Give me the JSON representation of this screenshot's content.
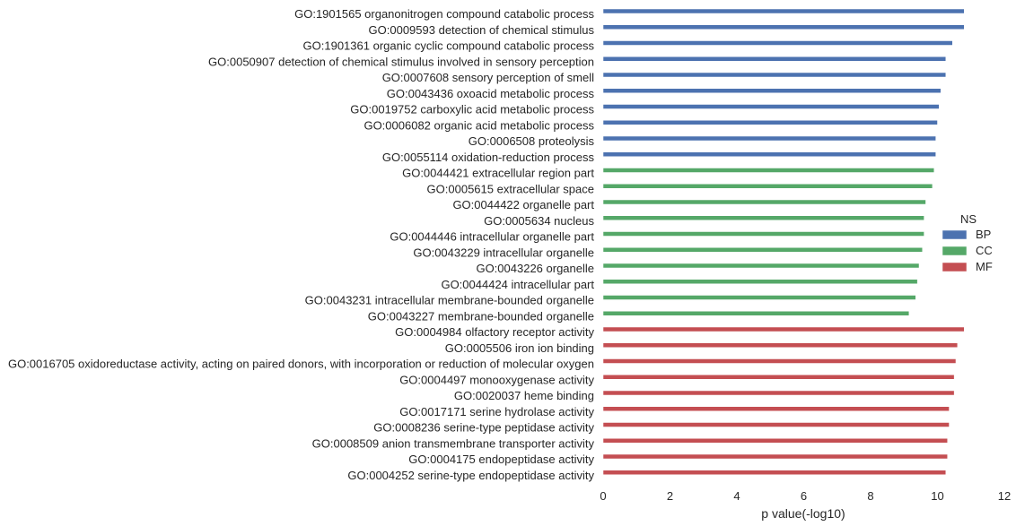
{
  "chart_data": {
    "type": "bar",
    "orientation": "horizontal",
    "xlabel": "p value(-log10)",
    "ylabel": "",
    "xlim": [
      0,
      12
    ],
    "xticks": [
      0,
      2,
      4,
      6,
      8,
      10,
      12
    ],
    "grid": false,
    "legend": {
      "title": "NS",
      "placement": "right",
      "entries": [
        "BP",
        "CC",
        "MF"
      ]
    },
    "colors": {
      "BP": "#4c72b0",
      "CC": "#55a868",
      "MF": "#c44e52"
    },
    "series": [
      {
        "name": "BP",
        "categories": [
          "GO:1901565 organonitrogen compound catabolic process",
          "GO:0009593 detection of chemical stimulus",
          "GO:1901361 organic cyclic compound catabolic process",
          "GO:0050907 detection of chemical stimulus involved in sensory perception",
          "GO:0007608 sensory perception of smell",
          "GO:0043436 oxoacid metabolic process",
          "GO:0019752 carboxylic acid metabolic process",
          "GO:0006082 organic acid metabolic process",
          "GO:0006508 proteolysis",
          "GO:0055114 oxidation-reduction process"
        ],
        "values": [
          10.8,
          10.8,
          10.45,
          10.25,
          10.25,
          10.1,
          10.05,
          10.0,
          9.95,
          9.95
        ]
      },
      {
        "name": "CC",
        "categories": [
          "GO:0044421 extracellular region part",
          "GO:0005615 extracellular space",
          "GO:0044422 organelle part",
          "GO:0005634 nucleus",
          "GO:0044446 intracellular organelle part",
          "GO:0043229 intracellular organelle",
          "GO:0043226 organelle",
          "GO:0044424 intracellular part",
          "GO:0043231 intracellular membrane-bounded organelle",
          "GO:0043227 membrane-bounded organelle"
        ],
        "values": [
          9.9,
          9.85,
          9.65,
          9.6,
          9.6,
          9.55,
          9.45,
          9.4,
          9.35,
          9.15
        ]
      },
      {
        "name": "MF",
        "categories": [
          "GO:0004984 olfactory receptor activity",
          "GO:0005506 iron ion binding",
          "GO:0016705 oxidoreductase activity, acting on paired donors, with incorporation or reduction of molecular oxygen",
          "GO:0004497 monooxygenase activity",
          "GO:0020037 heme binding",
          "GO:0017171 serine hydrolase activity",
          "GO:0008236 serine-type peptidase activity",
          "GO:0008509 anion transmembrane transporter activity",
          "GO:0004175 endopeptidase activity",
          "GO:0004252 serine-type endopeptidase activity"
        ],
        "values": [
          10.8,
          10.6,
          10.55,
          10.5,
          10.5,
          10.35,
          10.35,
          10.3,
          10.3,
          10.25
        ]
      }
    ]
  }
}
